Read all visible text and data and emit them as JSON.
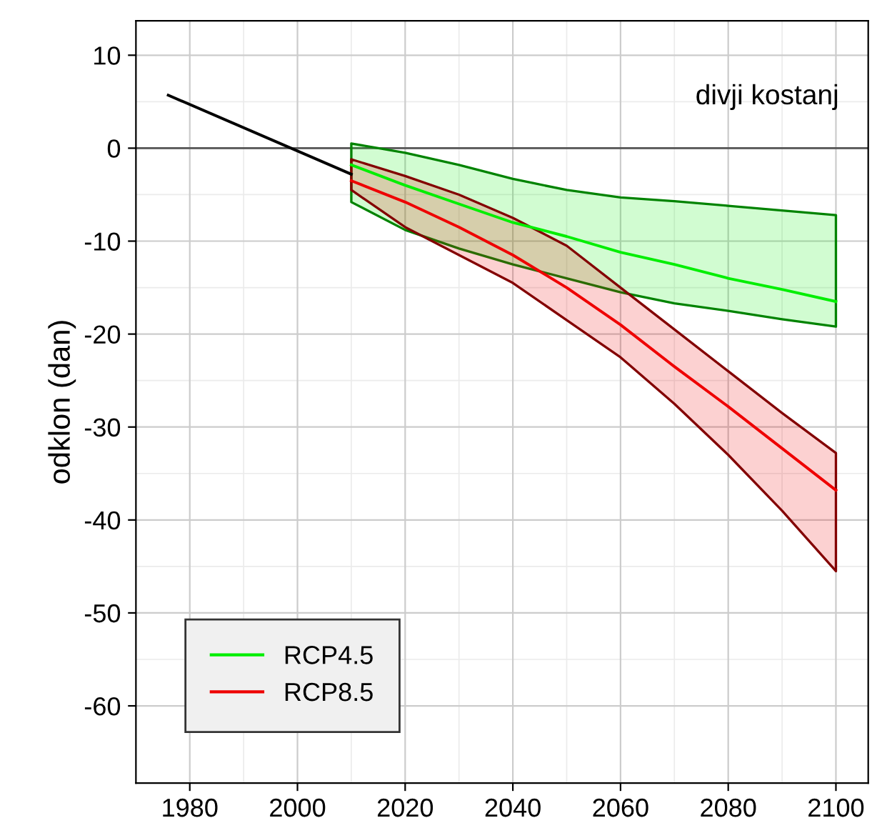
{
  "chart_data": {
    "type": "line",
    "ylabel": "odklon (dan)",
    "annotations": [
      "divji kostanj"
    ],
    "xlim": [
      1970,
      2106
    ],
    "ylim": [
      -68.3,
      13.7
    ],
    "xticks": [
      1980,
      2000,
      2020,
      2040,
      2060,
      2080,
      2100
    ],
    "yticks": [
      10,
      0,
      -10,
      -20,
      -30,
      -40,
      -50,
      -60
    ],
    "grid": true,
    "legend": "bottom left",
    "marker": "none",
    "line_style": "solid",
    "ref_lines": [
      {
        "axis": "y",
        "value": 0,
        "color": "#555555"
      }
    ],
    "series": [
      {
        "color": "#000000",
        "x": [
          1976,
          2010
        ],
        "values": [
          5.7,
          -2.8
        ]
      },
      {
        "name": "RCP4.5",
        "color": "#00ee00",
        "x": [
          2010,
          2020,
          2030,
          2040,
          2050,
          2060,
          2070,
          2080,
          2090,
          2100
        ],
        "values": [
          -1.8,
          -4,
          -6,
          -8,
          -9.5,
          -11.2,
          -12.5,
          -14,
          -15.2,
          -16.5
        ],
        "lower": [
          -5.8,
          -8.8,
          -10.8,
          -12.5,
          -14,
          -15.5,
          -16.7,
          -17.5,
          -18.4,
          -19.2
        ],
        "upper": [
          0.5,
          -0.5,
          -1.8,
          -3.3,
          -4.5,
          -5.3,
          -5.7,
          -6.2,
          -6.7,
          -7.2
        ]
      },
      {
        "name": "RCP8.5",
        "color": "#ee0000",
        "x": [
          2010,
          2020,
          2030,
          2040,
          2050,
          2060,
          2070,
          2080,
          2090,
          2100
        ],
        "values": [
          -3.5,
          -5.8,
          -8.5,
          -11.5,
          -15,
          -19,
          -23.5,
          -27.8,
          -32.3,
          -36.8
        ],
        "lower": [
          -4.5,
          -8.5,
          -11.5,
          -14.5,
          -18.5,
          -22.5,
          -27.5,
          -33,
          -39,
          -45.5
        ],
        "upper": [
          -1.2,
          -3,
          -5,
          -7.5,
          -10.5,
          -15,
          -19.5,
          -24,
          -28.5,
          -32.8
        ]
      }
    ]
  }
}
